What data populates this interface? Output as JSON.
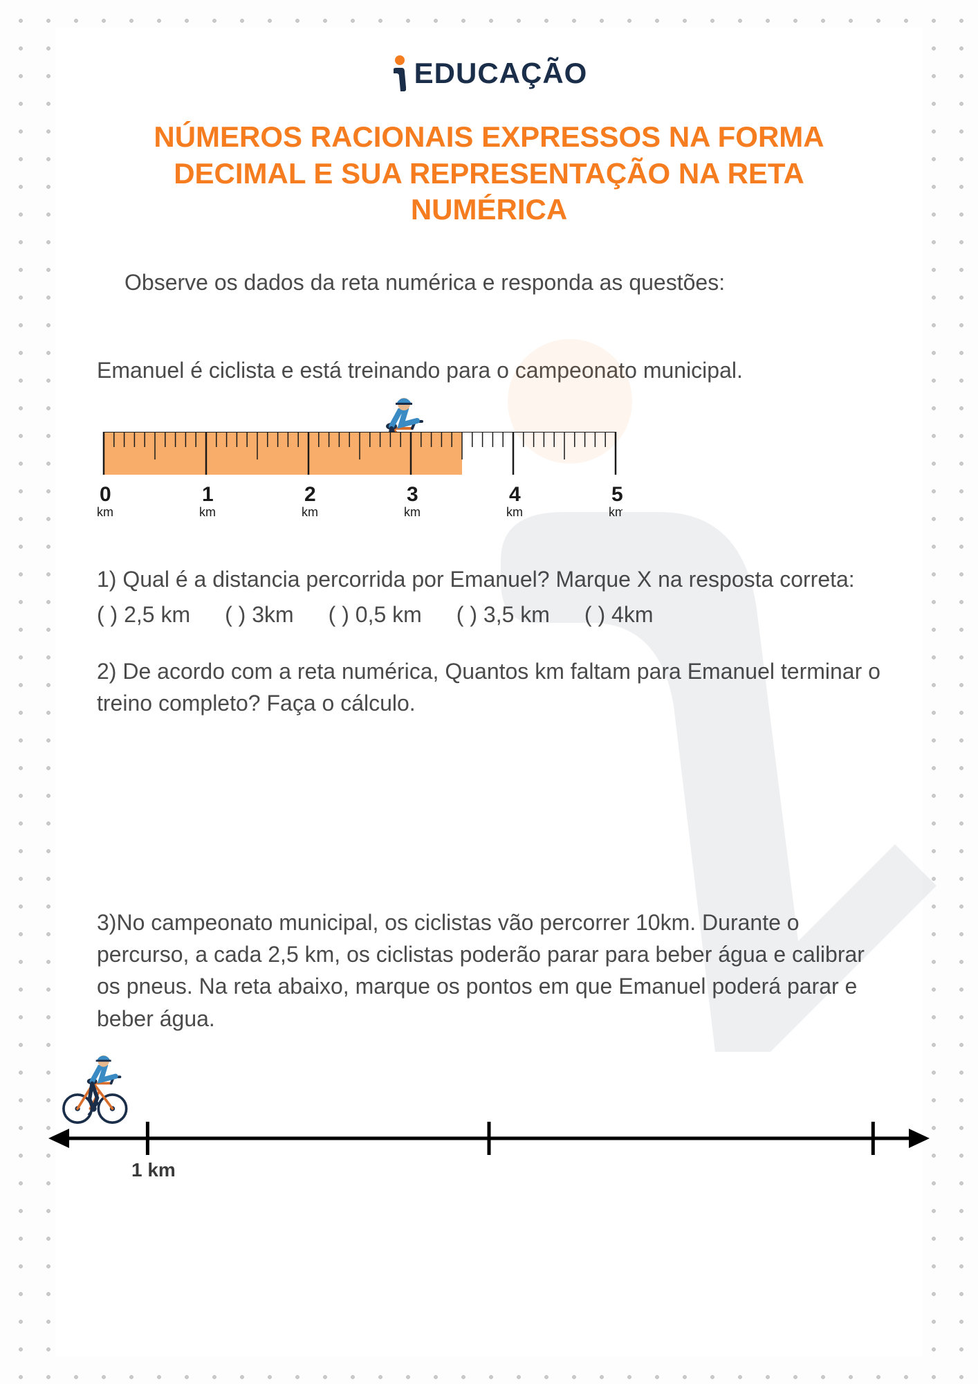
{
  "brand": {
    "name": "EDUCAÇÃO",
    "accent": "#f57c1f",
    "dark": "#1a2e4a"
  },
  "title": "NÚMEROS RACIONAIS EXPRESSOS NA FORMA DECIMAL E SUA REPRESENTAÇÃO NA RETA NUMÉRICA",
  "instruction": "Observe os dados da reta numérica e responda as questões:",
  "context": "Emanuel é ciclista e está treinando para o campeonato municipal.",
  "ruler": {
    "min": 0,
    "max": 5,
    "major_step": 1,
    "minor_step": 0.1,
    "fill_to": 3.5,
    "fill_color": "#f9ad6a",
    "tick_color": "#1a1a1a",
    "labels": [
      {
        "v": 0,
        "text": "0",
        "unit": "km"
      },
      {
        "v": 1,
        "text": "1",
        "unit": "km"
      },
      {
        "v": 2,
        "text": "2",
        "unit": "km"
      },
      {
        "v": 3,
        "text": "3",
        "unit": "km"
      },
      {
        "v": 4,
        "text": "4",
        "unit": "km"
      },
      {
        "v": 5,
        "text": "5",
        "unit": "km"
      }
    ]
  },
  "q1": {
    "text": "1) Qual é a distancia percorrida por Emanuel? Marque X na resposta correta:",
    "options": [
      "(   ) 2,5 km",
      "(   ) 3km",
      "(   ) 0,5 km",
      "(   ) 3,5 km",
      "(   ) 4km"
    ]
  },
  "q2": {
    "text": "2) De acordo com a reta numérica, Quantos km faltam para Emanuel terminar o treino completo? Faça o cálculo."
  },
  "q3": {
    "text": "3)No campeonato municipal, os ciclistas vão percorrer 10km. Durante o percurso, a cada 2,5 km, os ciclistas poderão parar para beber água e calibrar os pneus. Na reta abaixo, marque os pontos em que Emanuel poderá parar e beber água."
  },
  "bottom_line": {
    "label_1km": "1 km",
    "ticks": [
      0.1,
      0.5,
      0.95
    ],
    "line_color": "#000000"
  },
  "cyclist": {
    "helmet": "#3a8bc4",
    "shirt": "#3a8bc4",
    "skin": "#e8b98f",
    "shorts": "#1a2e4a",
    "wheel": "#1a2e4a",
    "frame": "#d96d2b"
  }
}
